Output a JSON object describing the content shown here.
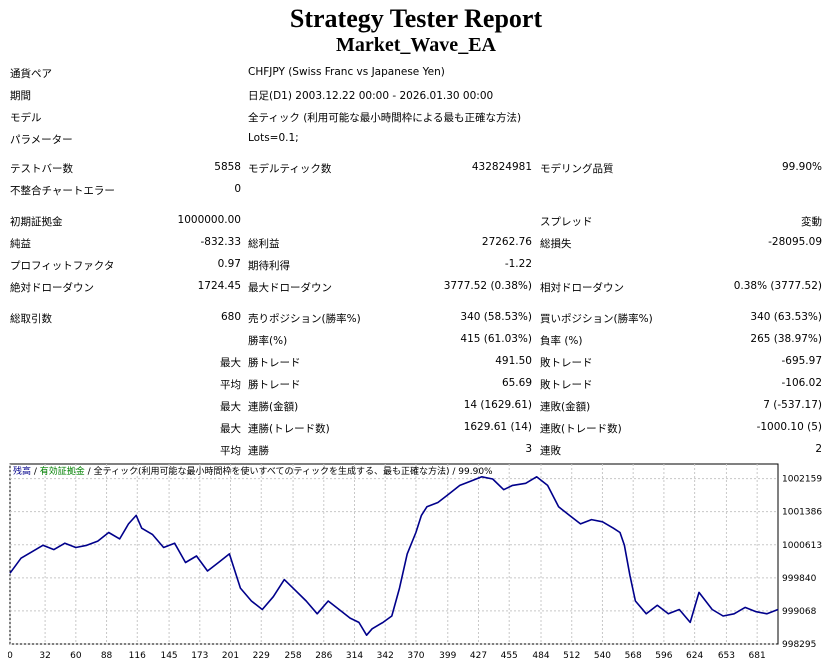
{
  "header": {
    "title": "Strategy Tester Report",
    "subtitle": "Market_Wave_EA"
  },
  "info": [
    {
      "label": "通貨ペア",
      "value": "CHFJPY (Swiss Franc vs Japanese Yen)"
    },
    {
      "label": "期間",
      "value": "日足(D1) 2003.12.22 00:00 - 2026.01.30 00:00"
    },
    {
      "label": "モデル",
      "value": "全ティック (利用可能な最小時間枠による最も正確な方法)"
    },
    {
      "label": "パラメーター",
      "value": "Lots=0.1;"
    }
  ],
  "stats": {
    "bars_label": "テストバー数",
    "bars_value": "5858",
    "ticks_label": "モデルティック数",
    "ticks_value": "432824981",
    "quality_label": "モデリング品質",
    "quality_value": "99.90%",
    "mismatch_label": "不整合チャートエラー",
    "mismatch_value": "0",
    "deposit_label": "初期証拠金",
    "deposit_value": "1000000.00",
    "spread_label": "スプレッド",
    "spread_value": "変動",
    "net_label": "純益",
    "net_value": "-832.33",
    "gross_profit_label": "総利益",
    "gross_profit_value": "27262.76",
    "gross_loss_label": "総損失",
    "gross_loss_value": "-28095.09",
    "pf_label": "プロフィットファクタ",
    "pf_value": "0.97",
    "expected_label": "期待利得",
    "expected_value": "-1.22",
    "abs_dd_label": "絶対ドローダウン",
    "abs_dd_value": "1724.45",
    "max_dd_label": "最大ドローダウン",
    "max_dd_value": "3777.52 (0.38%)",
    "rel_dd_label": "相対ドローダウン",
    "rel_dd_value": "0.38% (3777.52)",
    "trades_label": "総取引数",
    "trades_value": "680",
    "short_label": "売りポジション(勝率%)",
    "short_value": "340 (58.53%)",
    "long_label": "買いポジション(勝率%)",
    "long_value": "340 (63.53%)",
    "win_label": "勝率(%)",
    "win_value": "415 (61.03%)",
    "loss_label": "負率 (%)",
    "loss_value": "265 (38.97%)",
    "max_label": "最大",
    "avg_label": "平均",
    "largest_win_label": "勝トレード",
    "largest_win_value": "491.50",
    "largest_loss_label": "敗トレード",
    "largest_loss_value": "-695.97",
    "avg_win_label": "勝トレード",
    "avg_win_value": "65.69",
    "avg_loss_label": "敗トレード",
    "avg_loss_value": "-106.02",
    "max_cons_win_label": "連勝(金額)",
    "max_cons_win_value": "14 (1629.61)",
    "max_cons_loss_label": "連敗(金額)",
    "max_cons_loss_value": "7 (-537.17)",
    "max_cons_profit_label": "連勝(トレード数)",
    "max_cons_profit_value": "1629.61 (14)",
    "max_cons_lossamt_label": "連敗(トレード数)",
    "max_cons_lossamt_value": "-1000.10 (5)",
    "avg_cons_win_label": "連勝",
    "avg_cons_win_value": "3",
    "avg_cons_loss_label": "連敗",
    "avg_cons_loss_value": "2"
  },
  "chart_data": {
    "type": "line",
    "legend": {
      "balance": "残高",
      "sep1": " / ",
      "equity": "有効証拠金",
      "sep2": " / ",
      "model": "全ティック(利用可能な最小時間枠を使いすべてのティックを生成する、最も正確な方法)",
      "sep3": " / ",
      "quality": "99.90%"
    },
    "colors": {
      "line": "#00008b",
      "grid": "#c8c8c8",
      "balance": "#00008b",
      "equity": "#008000"
    },
    "x_ticks": [
      0,
      32,
      60,
      88,
      116,
      145,
      173,
      201,
      229,
      258,
      286,
      314,
      342,
      370,
      399,
      427,
      455,
      484,
      512,
      540,
      568,
      596,
      624,
      653,
      681
    ],
    "y_ticks": [
      1002159,
      1001386,
      1000613,
      999840,
      999068,
      998295
    ],
    "ylim": [
      998295,
      1002500
    ],
    "xlim": [
      0,
      700
    ],
    "series": [
      {
        "x": [
          0,
          10,
          20,
          30,
          40,
          50,
          60,
          70,
          80,
          90,
          100,
          108,
          115,
          120,
          130,
          140,
          150,
          160,
          170,
          180,
          190,
          200,
          210,
          220,
          230,
          240,
          250,
          260,
          270,
          280,
          290,
          300,
          310,
          318,
          325,
          330,
          340,
          348,
          355,
          362,
          370,
          375,
          380,
          390,
          400,
          410,
          420,
          430,
          440,
          450,
          458,
          470,
          480,
          490,
          500,
          510,
          520,
          530,
          540,
          550,
          556,
          560,
          565,
          570,
          580,
          590,
          600,
          610,
          620,
          628,
          640,
          650,
          660,
          670,
          680,
          690,
          700
        ],
        "y": [
          999950,
          1000300,
          1000450,
          1000600,
          1000500,
          1000650,
          1000550,
          1000600,
          1000700,
          1000900,
          1000750,
          1001100,
          1001300,
          1001000,
          1000850,
          1000550,
          1000650,
          1000200,
          1000350,
          1000000,
          1000200,
          1000400,
          999600,
          999300,
          999100,
          999400,
          999800,
          999550,
          999300,
          999000,
          999300,
          999100,
          998900,
          998800,
          998500,
          998650,
          998800,
          998950,
          999600,
          1000400,
          1000900,
          1001300,
          1001500,
          1001600,
          1001800,
          1002000,
          1002100,
          1002200,
          1002150,
          1001900,
          1002000,
          1002050,
          1002200,
          1002000,
          1001500,
          1001300,
          1001100,
          1001200,
          1001150,
          1001000,
          1000900,
          1000600,
          999900,
          999300,
          999000,
          999200,
          999000,
          999100,
          998800,
          999500,
          999100,
          998950,
          999000,
          999150,
          999050,
          999000,
          999100
        ]
      }
    ]
  }
}
